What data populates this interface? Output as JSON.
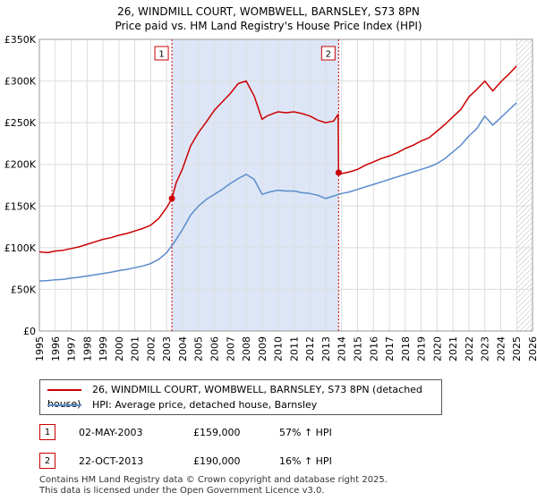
{
  "colors": {
    "price_line": "#cc0000",
    "hpi_line": "#5b8ccc",
    "shade": "#dde6f7",
    "grid": "#dddddd",
    "vline": "#cc0000"
  },
  "chart_data": {
    "type": "line",
    "title": "26, WINDMILL COURT, WOMBWELL, BARNSLEY, S73 8PN",
    "subtitle": "Price paid vs. HM Land Registry's House Price Index (HPI)",
    "xlabel": "",
    "ylabel": "",
    "xlim": [
      1995,
      2026
    ],
    "ylim": [
      0,
      350000
    ],
    "y_ticks": [
      0,
      50000,
      100000,
      150000,
      200000,
      250000,
      300000,
      350000
    ],
    "y_tick_labels": [
      "£0",
      "£50K",
      "£100K",
      "£150K",
      "£200K",
      "£250K",
      "£300K",
      "£350K"
    ],
    "x_ticks": [
      1995,
      1996,
      1997,
      1998,
      1999,
      2000,
      2001,
      2002,
      2003,
      2004,
      2005,
      2006,
      2007,
      2008,
      2009,
      2010,
      2011,
      2012,
      2013,
      2014,
      2015,
      2016,
      2017,
      2018,
      2019,
      2020,
      2021,
      2022,
      2023,
      2024,
      2025,
      2026
    ],
    "x_tick_labels": [
      "1995",
      "1996",
      "1997",
      "1998",
      "1999",
      "2000",
      "2001",
      "2002",
      "2003",
      "2004",
      "2005",
      "2006",
      "2007",
      "2008",
      "2009",
      "2010",
      "2011",
      "2012",
      "2013",
      "2014",
      "2015",
      "2016",
      "2017",
      "2018",
      "2019",
      "2020",
      "2021",
      "2022",
      "2023",
      "2024",
      "2025",
      "2026"
    ],
    "grid": true,
    "shaded_region": [
      2003.33,
      2013.81
    ],
    "hatched_after": 2025.0,
    "series": [
      {
        "name": "26, WINDMILL COURT, WOMBWELL, BARNSLEY, S73 8PN (detached house)",
        "x": [
          1995.0,
          1995.5,
          1996.0,
          1996.5,
          1997.0,
          1997.5,
          1998.0,
          1998.5,
          1999.0,
          1999.5,
          2000.0,
          2000.5,
          2001.0,
          2001.5,
          2002.0,
          2002.5,
          2003.0,
          2003.33,
          2003.6,
          2004.0,
          2004.5,
          2005.0,
          2005.5,
          2006.0,
          2006.5,
          2007.0,
          2007.5,
          2008.0,
          2008.5,
          2009.0,
          2009.3,
          2009.7,
          2010.0,
          2010.5,
          2011.0,
          2011.5,
          2012.0,
          2012.5,
          2013.0,
          2013.5,
          2013.78,
          2013.81,
          2014.0,
          2014.5,
          2015.0,
          2015.5,
          2016.0,
          2016.5,
          2017.0,
          2017.5,
          2018.0,
          2018.5,
          2019.0,
          2019.5,
          2020.0,
          2020.5,
          2021.0,
          2021.5,
          2022.0,
          2022.5,
          2023.0,
          2023.5,
          2024.0,
          2024.5,
          2025.0
        ],
        "y": [
          95000,
          94000,
          96000,
          97000,
          99000,
          101000,
          104000,
          107000,
          110000,
          112000,
          115000,
          117000,
          120000,
          123000,
          127000,
          135000,
          148000,
          159000,
          178000,
          195000,
          222000,
          238000,
          251000,
          265000,
          275000,
          285000,
          297000,
          300000,
          282000,
          254000,
          258000,
          261000,
          263000,
          262000,
          263000,
          261000,
          258000,
          253000,
          250000,
          252000,
          260000,
          190000,
          189000,
          191000,
          194000,
          199000,
          203000,
          207000,
          210000,
          214000,
          219000,
          223000,
          228000,
          232000,
          240000,
          248000,
          257000,
          266000,
          281000,
          290000,
          300000,
          288000,
          299000,
          308000,
          318000
        ]
      },
      {
        "name": "HPI: Average price, detached house, Barnsley",
        "x": [
          1995.0,
          1995.5,
          1996.0,
          1996.5,
          1997.0,
          1997.5,
          1998.0,
          1998.5,
          1999.0,
          1999.5,
          2000.0,
          2000.5,
          2001.0,
          2001.5,
          2002.0,
          2002.5,
          2003.0,
          2003.5,
          2004.0,
          2004.5,
          2005.0,
          2005.5,
          2006.0,
          2006.5,
          2007.0,
          2007.5,
          2008.0,
          2008.5,
          2009.0,
          2009.5,
          2010.0,
          2010.5,
          2011.0,
          2011.5,
          2012.0,
          2012.5,
          2013.0,
          2013.5,
          2014.0,
          2014.5,
          2015.0,
          2015.5,
          2016.0,
          2016.5,
          2017.0,
          2017.5,
          2018.0,
          2018.5,
          2019.0,
          2019.5,
          2020.0,
          2020.5,
          2021.0,
          2021.5,
          2022.0,
          2022.5,
          2023.0,
          2023.5,
          2024.0,
          2024.5,
          2025.0
        ],
        "y": [
          60000,
          60500,
          61500,
          62000,
          63500,
          64500,
          66000,
          67500,
          69000,
          70500,
          72500,
          74000,
          76000,
          78000,
          81000,
          86000,
          94000,
          107000,
          122000,
          139000,
          150000,
          158000,
          164000,
          170000,
          177000,
          183000,
          188000,
          182000,
          164000,
          167000,
          169000,
          168000,
          168000,
          166000,
          165000,
          163000,
          159000,
          162000,
          165000,
          167000,
          170000,
          173000,
          176000,
          179000,
          182000,
          185000,
          188000,
          191000,
          194000,
          197000,
          201000,
          207000,
          215000,
          223000,
          234000,
          243000,
          258000,
          247000,
          256000,
          265000,
          274000
        ]
      }
    ],
    "markers": [
      {
        "label": "1",
        "x": 2003.33,
        "y": 159000
      },
      {
        "label": "2",
        "x": 2013.81,
        "y": 190000
      }
    ]
  },
  "legend": {
    "price_label": "26, WINDMILL COURT, WOMBWELL, BARNSLEY, S73 8PN (detached house)",
    "hpi_label": "HPI: Average price, detached house, Barnsley"
  },
  "sales": [
    {
      "num": "1",
      "date": "02-MAY-2003",
      "price": "£159,000",
      "hpi": "57% ↑ HPI"
    },
    {
      "num": "2",
      "date": "22-OCT-2013",
      "price": "£190,000",
      "hpi": "16% ↑ HPI"
    }
  ],
  "footer": {
    "line1": "Contains HM Land Registry data © Crown copyright and database right 2025.",
    "line2": "This data is licensed under the Open Government Licence v3.0."
  }
}
